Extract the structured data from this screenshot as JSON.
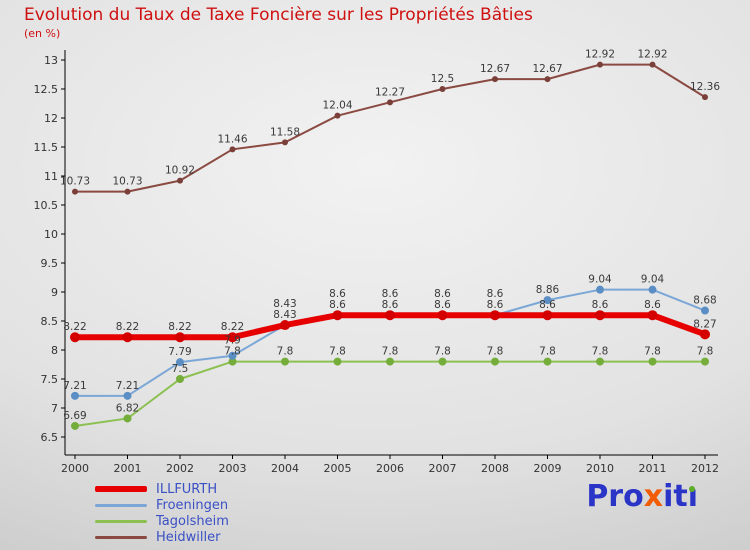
{
  "title": "Evolution du Taux de Taxe Foncière sur les Propriétés Bâties",
  "subtitle": "(en %)",
  "chart_data": {
    "type": "line",
    "x": [
      2000,
      2001,
      2002,
      2003,
      2004,
      2005,
      2006,
      2007,
      2008,
      2009,
      2010,
      2011,
      2012
    ],
    "ylim": [
      6.5,
      13
    ],
    "ytick_step": 0.5,
    "grid": false,
    "legend_position": "bottom-left",
    "series": [
      {
        "name": "ILLFURTH",
        "color": "#e60000",
        "marker_color": "#d40000",
        "line_width": 6,
        "marker_r": 5,
        "values": [
          8.22,
          8.22,
          8.22,
          8.22,
          8.43,
          8.6,
          8.6,
          8.6,
          8.6,
          8.6,
          8.6,
          8.6,
          8.27
        ]
      },
      {
        "name": "Froeningen",
        "color": "#7ba7d7",
        "marker_color": "#5b8ec4",
        "line_width": 2,
        "marker_r": 4,
        "values": [
          7.21,
          7.21,
          7.79,
          7.9,
          8.43,
          8.6,
          8.6,
          8.6,
          8.6,
          8.86,
          9.04,
          9.04,
          8.68
        ]
      },
      {
        "name": "Tagolsheim",
        "color": "#8cc152",
        "marker_color": "#74ad3a",
        "line_width": 2,
        "marker_r": 4,
        "values": [
          6.69,
          6.82,
          7.5,
          7.8,
          7.8,
          7.8,
          7.8,
          7.8,
          7.8,
          7.8,
          7.8,
          7.8,
          7.8
        ]
      },
      {
        "name": "Heidwiller",
        "color": "#8a4a42",
        "marker_color": "#7a3f38",
        "line_width": 2,
        "marker_r": 3,
        "values": [
          10.73,
          10.73,
          10.92,
          11.46,
          11.58,
          12.04,
          12.27,
          12.5,
          12.67,
          12.67,
          12.92,
          12.92,
          12.36
        ]
      }
    ]
  },
  "legend": {
    "label_color": "#3a50c5"
  },
  "logo": {
    "parts": [
      {
        "text": "Pro",
        "color": "#2a35c8"
      },
      {
        "text": "x",
        "color": "#f25c05"
      },
      {
        "text": "it",
        "color": "#2a35c8"
      }
    ],
    "last_letter": "ı",
    "last_letter_color": "#2a35c8",
    "dot_color": "#5fae27"
  },
  "colors": {
    "title": "#cf1010",
    "axis": "#000000",
    "tick_label": "#333333",
    "data_label": "#3a3a3a"
  }
}
